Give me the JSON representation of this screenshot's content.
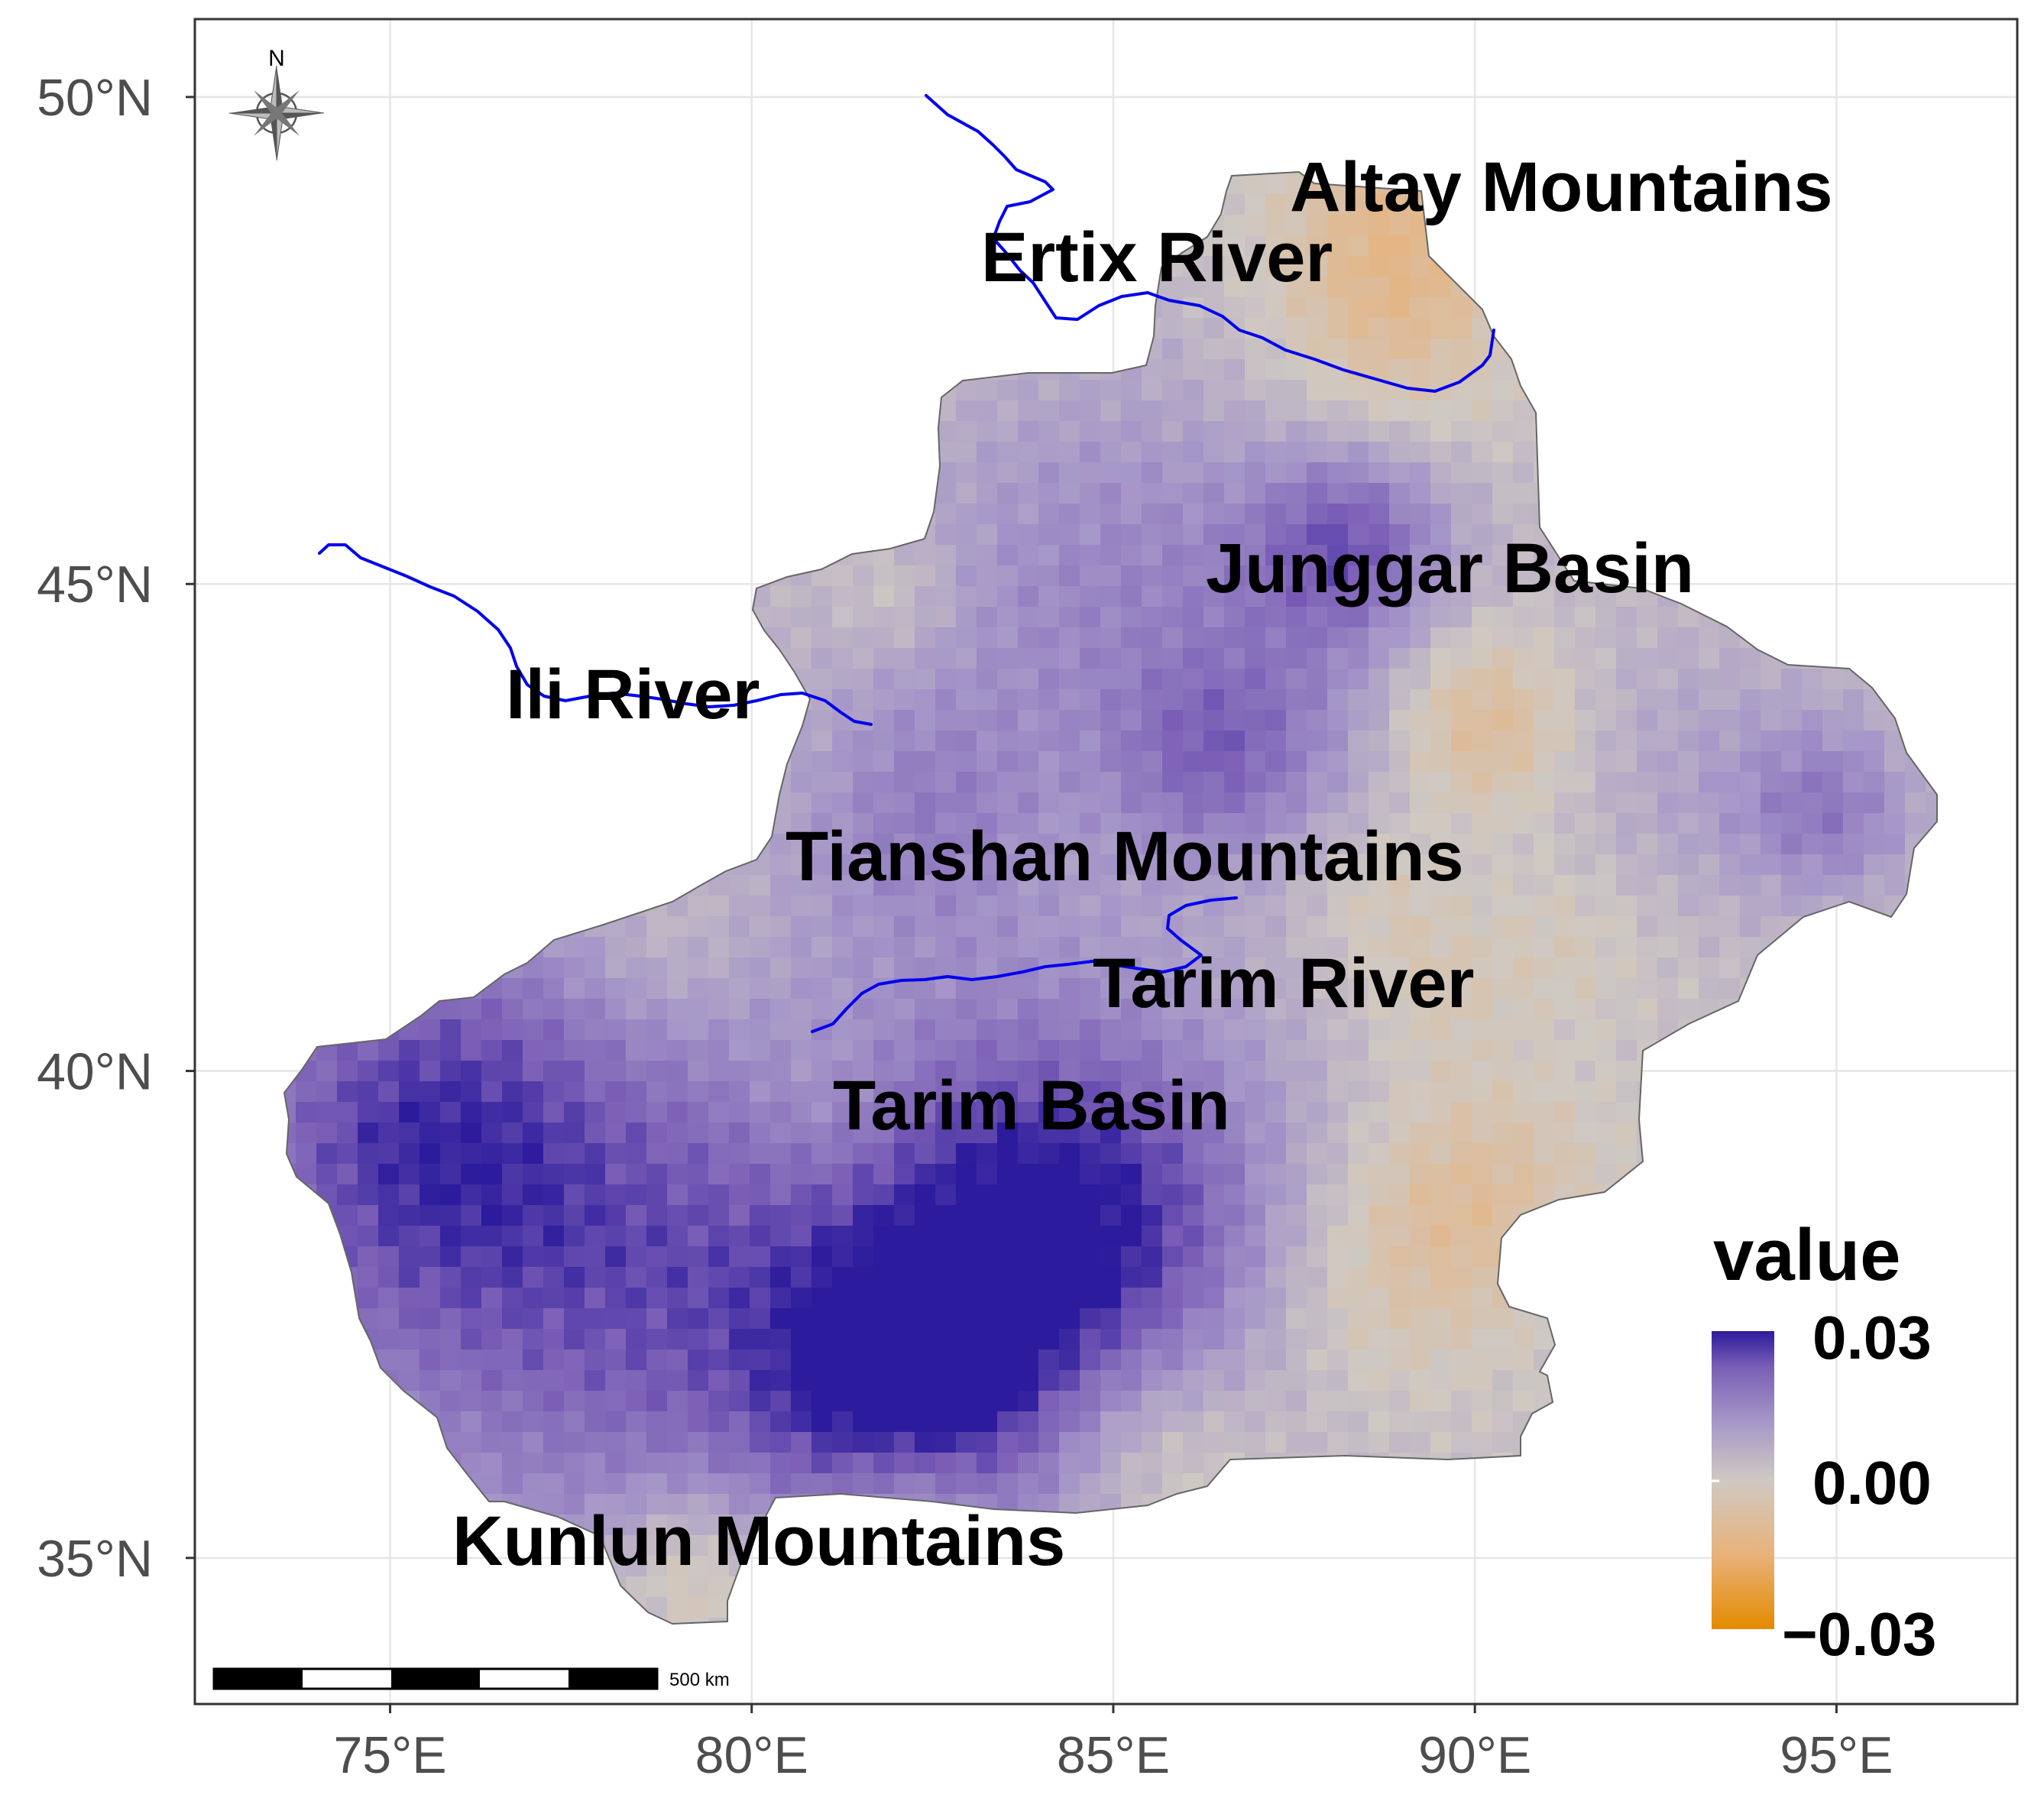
{
  "map": {
    "region": "Xinjiang",
    "axes": {
      "y_ticks": [
        "50°N",
        "45°N",
        "40°N",
        "35°N"
      ],
      "x_ticks": [
        "75°E",
        "80°E",
        "85°E",
        "90°E",
        "95°E"
      ],
      "lat_values": [
        50,
        45,
        40,
        35
      ],
      "lon_values": [
        75,
        80,
        85,
        90,
        95
      ],
      "lon_range": [
        72.3,
        97.5
      ],
      "lat_range": [
        33.5,
        50.8
      ]
    },
    "labels": {
      "altay": "Altay Mountains",
      "ertix": "Ertix River",
      "junggar": "Junggar Basin",
      "ili": "Ili River",
      "tianshan": "Tianshan Mountains",
      "tarim_river": "Tarim River",
      "tarim_basin": "Tarim Basin",
      "kunlun": "Kunlun Mountains"
    },
    "legend": {
      "title": "value",
      "max_label": "0.03",
      "mid_label": "0.00",
      "min_label": "−0.03",
      "max": 0.03,
      "min": -0.03,
      "colors": [
        "#e48a00",
        "#e8b27a",
        "#cfc9c3",
        "#a596c8",
        "#7a5eb6",
        "#2c1b9c"
      ]
    },
    "scale_bar": {
      "label": "500 km"
    },
    "compass": {
      "label": "N"
    },
    "colors": {
      "river": "#0000ee",
      "grid": "#e6e6e6",
      "frame": "#333333",
      "outline": "#666666"
    }
  }
}
